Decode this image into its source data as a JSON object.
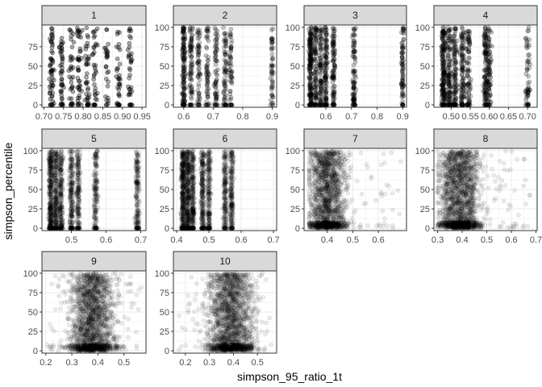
{
  "chart_data": {
    "type": "scatter",
    "facet_by": "facet",
    "xlabel": "simpson_95_ratio_1t",
    "ylabel": "simpson_percentile",
    "grid": true,
    "point_color": "#000000",
    "point_opacity": "low (overplotted)",
    "strip_fill": "#d9d9d9",
    "panel_border": "#333333",
    "grid_color": "#ebebeb",
    "facets": [
      {
        "label": "1",
        "xlim": [
          0.695,
          0.96
        ],
        "ylim": [
          -3,
          103
        ],
        "yticks": [
          0,
          25,
          50,
          75
        ],
        "xticks": [
          0.7,
          0.75,
          0.8,
          0.85,
          0.9,
          0.95
        ],
        "xtick_labels": [
          "0.70",
          "0.75",
          "0.80",
          "0.85",
          "0.90",
          "0.95"
        ],
        "n_points": 360,
        "x_range": [
          0.705,
          0.95
        ],
        "x_clusters": [
          0.72,
          0.745,
          0.77,
          0.79,
          0.81,
          0.83,
          0.86,
          0.89,
          0.92
        ]
      },
      {
        "label": "2",
        "xlim": [
          0.565,
          0.915
        ],
        "ylim": [
          -3,
          103
        ],
        "yticks": [
          0,
          25,
          50,
          75,
          100
        ],
        "xticks": [
          0.6,
          0.7,
          0.8,
          0.9
        ],
        "xtick_labels": [
          "0.6",
          "0.7",
          "0.8",
          "0.9"
        ],
        "n_points": 600,
        "x_range": [
          0.58,
          0.91
        ],
        "x_clusters": [
          0.6,
          0.625,
          0.65,
          0.68,
          0.71,
          0.74,
          0.76,
          0.9
        ]
      },
      {
        "label": "3",
        "xlim": [
          0.515,
          0.915
        ],
        "ylim": [
          -3,
          103
        ],
        "yticks": [
          0,
          25,
          50,
          75,
          100
        ],
        "xticks": [
          0.6,
          0.7,
          0.8,
          0.9
        ],
        "xtick_labels": [
          "0.6",
          "0.7",
          "0.8",
          "0.9"
        ],
        "n_points": 800,
        "x_range": [
          0.53,
          0.91
        ],
        "x_clusters": [
          0.54,
          0.56,
          0.58,
          0.6,
          0.63,
          0.71,
          0.9
        ]
      },
      {
        "label": "4",
        "xlim": [
          0.455,
          0.725
        ],
        "ylim": [
          -3,
          103
        ],
        "yticks": [
          0,
          25,
          50,
          75,
          100
        ],
        "xticks": [
          0.5,
          0.55,
          0.6,
          0.65,
          0.7
        ],
        "xtick_labels": [
          "0.50",
          "0.55",
          "0.60",
          "0.65",
          "0.70"
        ],
        "n_points": 900,
        "x_range": [
          0.47,
          0.715
        ],
        "x_clusters": [
          0.48,
          0.495,
          0.51,
          0.53,
          0.545,
          0.59,
          0.6,
          0.7
        ]
      },
      {
        "label": "5",
        "xlim": [
          0.415,
          0.715
        ],
        "ylim": [
          -3,
          103
        ],
        "yticks": [
          0,
          25,
          50,
          75,
          100
        ],
        "xticks": [
          0.5,
          0.6,
          0.7
        ],
        "xtick_labels": [
          "0.5",
          "0.6",
          "0.7"
        ],
        "n_points": 1400,
        "x_range": [
          0.43,
          0.7
        ],
        "x_clusters": [
          0.44,
          0.455,
          0.47,
          0.5,
          0.52,
          0.57,
          0.69
        ]
      },
      {
        "label": "6",
        "xlim": [
          0.39,
          0.71
        ],
        "ylim": [
          -3,
          103
        ],
        "yticks": [
          0,
          25,
          50,
          75,
          100
        ],
        "xticks": [
          0.4,
          0.5,
          0.6,
          0.7
        ],
        "xtick_labels": [
          "0.4",
          "0.5",
          "0.6",
          "0.7"
        ],
        "n_points": 1600,
        "x_range": [
          0.405,
          0.69
        ],
        "x_clusters": [
          0.42,
          0.435,
          0.45,
          0.48,
          0.5,
          0.55,
          0.57
        ]
      },
      {
        "label": "7",
        "xlim": [
          0.31,
          0.71
        ],
        "ylim": [
          -3,
          103
        ],
        "yticks": [
          0,
          25,
          50,
          75,
          100
        ],
        "xticks": [
          0.4,
          0.5,
          0.6
        ],
        "xtick_labels": [
          "0.4",
          "0.5",
          "0.6"
        ],
        "n_points": 1800,
        "x_range": [
          0.33,
          0.69
        ],
        "x_center": 0.4,
        "x_spread": 0.05
      },
      {
        "label": "8",
        "xlim": [
          0.285,
          0.705
        ],
        "ylim": [
          -3,
          103
        ],
        "yticks": [
          0,
          25,
          50,
          75,
          100
        ],
        "xticks": [
          0.3,
          0.4,
          0.5,
          0.6,
          0.7
        ],
        "xtick_labels": [
          "0.3",
          "0.4",
          "0.5",
          "0.6",
          "0.7"
        ],
        "n_points": 2000,
        "x_range": [
          0.3,
          0.69
        ],
        "x_center": 0.39,
        "x_spread": 0.055
      },
      {
        "label": "9",
        "xlim": [
          0.185,
          0.585
        ],
        "ylim": [
          -3,
          103
        ],
        "yticks": [
          0,
          25,
          50,
          75,
          100
        ],
        "xticks": [
          0.2,
          0.3,
          0.4,
          0.5
        ],
        "xtick_labels": [
          "0.2",
          "0.3",
          "0.4",
          "0.5"
        ],
        "n_points": 2000,
        "x_range": [
          0.2,
          0.57
        ],
        "x_center": 0.38,
        "x_spread": 0.06
      },
      {
        "label": "10",
        "xlim": [
          0.15,
          0.58
        ],
        "ylim": [
          -3,
          103
        ],
        "yticks": [
          0,
          25,
          50,
          75,
          100
        ],
        "xticks": [
          0.2,
          0.3,
          0.4,
          0.5
        ],
        "xtick_labels": [
          "0.2",
          "0.3",
          "0.4",
          "0.5"
        ],
        "n_points": 2000,
        "x_range": [
          0.17,
          0.57
        ],
        "x_center": 0.39,
        "x_spread": 0.065
      }
    ]
  }
}
